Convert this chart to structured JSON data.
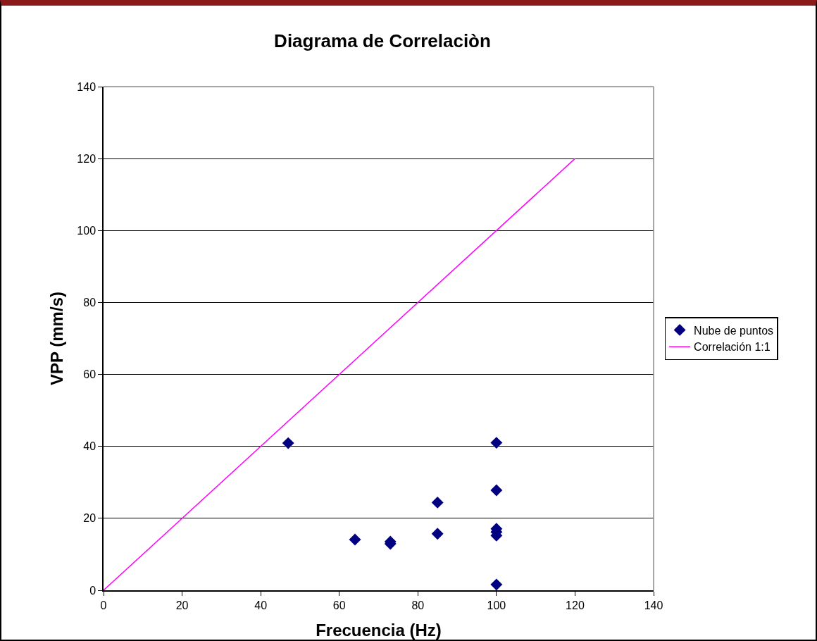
{
  "chart_data": {
    "type": "scatter",
    "title": "Diagrama de Correlaciòn",
    "xlabel": "Frecuencia (Hz)",
    "ylabel": "VPP (mm/s)",
    "series": [
      {
        "name": "Nube de puntos",
        "color": "#000080",
        "marker": "diamond",
        "x": [
          47,
          100,
          100,
          85,
          64,
          73,
          73,
          85,
          100,
          100,
          100,
          100
        ],
        "values": [
          40.9,
          41,
          27.8,
          24.4,
          14.1,
          13.5,
          12.9,
          15.7,
          17.1,
          16.2,
          15.2,
          1.6
        ]
      },
      {
        "name": "Correlación 1:1",
        "type": "line",
        "color": "#ff00ff",
        "marker": "none",
        "line_style": "solid",
        "x": [
          0,
          120
        ],
        "values": [
          0,
          120
        ]
      }
    ],
    "xlim": [
      0,
      140
    ],
    "xticks": [
      0,
      20,
      40,
      60,
      80,
      100,
      120,
      140
    ],
    "ylim": [
      0,
      140
    ],
    "yticks": [
      0,
      20,
      40,
      60,
      80,
      100,
      120,
      140
    ],
    "grid": "y",
    "legend": "right"
  }
}
